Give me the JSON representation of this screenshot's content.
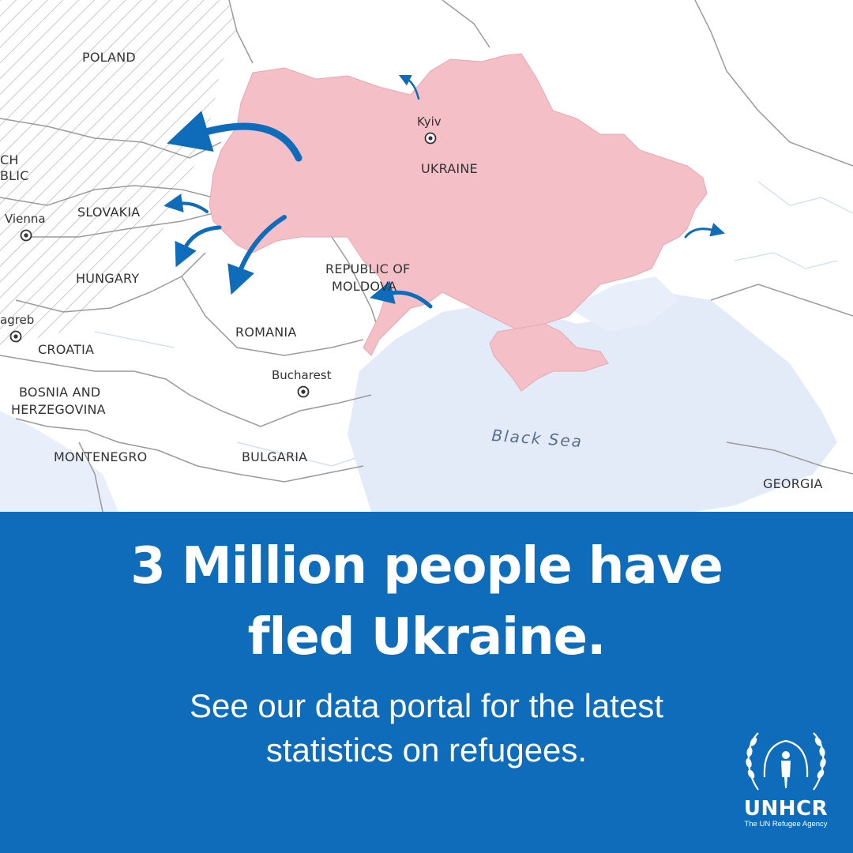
{
  "map": {
    "countries": {
      "poland": "POLAND",
      "czech_a": "CH",
      "czech_b": "BLIC",
      "slovakia": "SLOVAKIA",
      "hungary": "HUNGARY",
      "croatia": "CROATIA",
      "bosnia_a": "BOSNIA AND",
      "bosnia_b": "HERZEGOVINA",
      "montenegro": "MONTENEGRO",
      "romania": "ROMANIA",
      "bulgaria": "BULGARIA",
      "moldova_a": "REPUBLIC OF",
      "moldova_b": "MOLDOVA",
      "ukraine": "UKRAINE",
      "georgia": "GEORGIA"
    },
    "cities": {
      "kyiv": "Kyiv",
      "vienna": "Vienna",
      "zagreb": "agreb",
      "bucharest": "Bucharest"
    },
    "sea": "Black Sea",
    "colors": {
      "ukraine_fill": "#f4bfc6",
      "arrow": "#0e6cba",
      "sea": "#e3ebf8",
      "border": "#9a9a9a"
    }
  },
  "banner": {
    "headline_line1": "3 Million people have",
    "headline_line2": "fled Ukraine.",
    "subline_line1": "See our data portal for the latest",
    "subline_line2": "statistics on refugees.",
    "background_color": "#0e6cba"
  },
  "logo": {
    "icon": "unhcr-emblem-icon",
    "name": "UNHCR",
    "tagline": "The UN Refugee Agency"
  }
}
